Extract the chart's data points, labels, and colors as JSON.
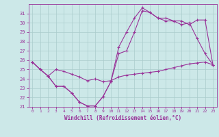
{
  "xlabel": "Windchill (Refroidissement éolien,°C)",
  "ylabel": "",
  "background_color": "#cce8e8",
  "line_color": "#993399",
  "grid_color": "#aacccc",
  "xlim": [
    -0.5,
    23.5
  ],
  "ylim": [
    21,
    32
  ],
  "yticks": [
    21,
    22,
    23,
    24,
    25,
    26,
    27,
    28,
    29,
    30,
    31
  ],
  "xticks": [
    0,
    1,
    2,
    3,
    4,
    5,
    6,
    7,
    8,
    9,
    10,
    11,
    12,
    13,
    14,
    15,
    16,
    17,
    18,
    19,
    20,
    21,
    22,
    23
  ],
  "series": [
    {
      "x": [
        0,
        1,
        2,
        3,
        4,
        5,
        6,
        7,
        8,
        9,
        10,
        11,
        12,
        13,
        14,
        15,
        16,
        17,
        18,
        19,
        20,
        21,
        22,
        23
      ],
      "y": [
        25.8,
        25.0,
        24.3,
        25.0,
        24.8,
        24.5,
        24.2,
        23.8,
        24.0,
        23.7,
        23.8,
        24.2,
        24.4,
        24.5,
        24.6,
        24.7,
        24.8,
        25.0,
        25.2,
        25.4,
        25.6,
        25.7,
        25.8,
        25.5
      ]
    },
    {
      "x": [
        0,
        1,
        2,
        3,
        4,
        5,
        6,
        7,
        8,
        9,
        10,
        11,
        12,
        13,
        14,
        15,
        16,
        17,
        18,
        19,
        20,
        21,
        22,
        23
      ],
      "y": [
        25.8,
        25.0,
        24.3,
        23.2,
        23.2,
        22.5,
        21.5,
        21.1,
        21.1,
        22.1,
        23.7,
        26.7,
        27.0,
        29.0,
        31.3,
        31.1,
        30.5,
        30.2,
        30.2,
        29.8,
        30.0,
        28.3,
        26.7,
        25.5
      ]
    },
    {
      "x": [
        0,
        1,
        2,
        3,
        4,
        5,
        6,
        7,
        8,
        9,
        10,
        11,
        12,
        13,
        14,
        15,
        16,
        17,
        18,
        19,
        20,
        21,
        22,
        23
      ],
      "y": [
        25.8,
        25.0,
        24.3,
        23.2,
        23.2,
        22.5,
        21.5,
        21.1,
        21.1,
        22.1,
        23.7,
        27.4,
        29.0,
        30.5,
        31.6,
        31.1,
        30.5,
        30.5,
        30.2,
        30.2,
        29.8,
        30.3,
        30.3,
        25.5
      ]
    }
  ]
}
